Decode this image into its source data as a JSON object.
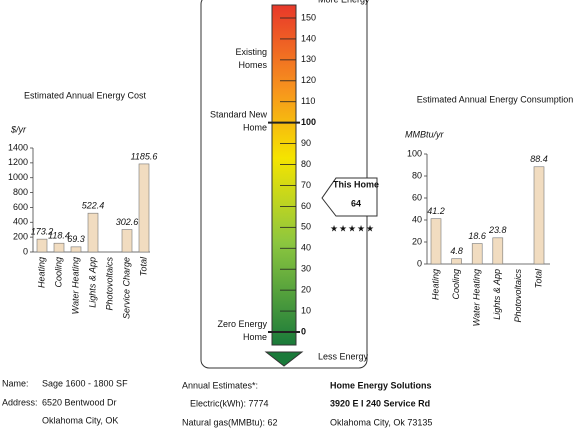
{
  "chart_data": [
    {
      "type": "bar",
      "title": "Estimated Annual Energy Cost",
      "ylabel": "$/yr",
      "categories": [
        "Heating",
        "Cooling",
        "Water Heating",
        "Lights & App",
        "Photovoltaics",
        "Service Charge",
        "Total"
      ],
      "values": [
        173.2,
        118.4,
        69.3,
        522.4,
        null,
        302.6,
        1185.6
      ],
      "color": "#f1dcc0",
      "ylim": [
        0,
        1400
      ],
      "yticks": [
        0,
        200,
        400,
        600,
        800,
        1000,
        1200,
        1400
      ]
    },
    {
      "type": "bar",
      "title": "Estimated Annual Energy Consumption",
      "ylabel": "MMBtu/yr",
      "categories": [
        "Heating",
        "Cooling",
        "Water Heating",
        "Lights & App",
        "Photovoltaics",
        "Total"
      ],
      "values": [
        41.2,
        4.8,
        18.6,
        23.8,
        null,
        88.4
      ],
      "color": "#f1dcc0",
      "ylim": [
        0,
        100
      ],
      "yticks": [
        0,
        20,
        40,
        60,
        80,
        100
      ]
    }
  ],
  "hers_scale": {
    "top_label": "More Energy",
    "bottom_label": "Less Energy",
    "range": [
      0,
      150
    ],
    "ticks": [
      0,
      10,
      20,
      30,
      40,
      50,
      60,
      70,
      80,
      90,
      100,
      110,
      120,
      130,
      140,
      150
    ],
    "markers": [
      {
        "label": "Existing Homes",
        "value": 130
      },
      {
        "label": "Standard New Home",
        "value": 100
      },
      {
        "label": "Zero Energy Home",
        "value": 0
      }
    ],
    "this_home": {
      "label": "This Home",
      "value": 64
    }
  },
  "info": {
    "name_label": "Name:",
    "name": "Sage 1600 - 1800 SF",
    "address_label": "Address:",
    "address_1": "6520 Bentwood Dr",
    "address_2": "Oklahoma City, OK",
    "estimates_title": "Annual Estimates*:",
    "electric": "Electric(kWh): 7774",
    "gas": "Natural gas(MMBtu): 62",
    "rater": "Home Energy Solutions",
    "rater_address_1": "3920 E I 240 Service Rd",
    "rater_address_2": "Oklahoma City, Ok 73135"
  }
}
